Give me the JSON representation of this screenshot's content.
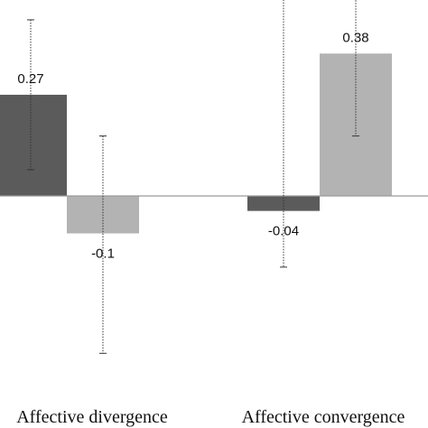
{
  "chart_data": {
    "type": "bar",
    "categories": [
      "Affective divergence",
      "Affective convergence"
    ],
    "series": [
      {
        "values": [
          0.27,
          -0.04
        ],
        "error_low": [
          0.07,
          -0.19
        ],
        "error_high": [
          0.47,
          0.56
        ],
        "color": "#5b5b5b"
      },
      {
        "values": [
          -0.1,
          0.38
        ],
        "error_low": [
          -0.42,
          0.16
        ],
        "error_high": [
          0.16,
          0.58
        ],
        "color": "#b3b3b3"
      }
    ],
    "data_labels": [
      [
        "0.27",
        "-0.04"
      ],
      [
        "-0.1",
        "0.38"
      ]
    ],
    "title": "",
    "xlabel": "",
    "ylabel": "",
    "grid": false,
    "legend": "none"
  }
}
